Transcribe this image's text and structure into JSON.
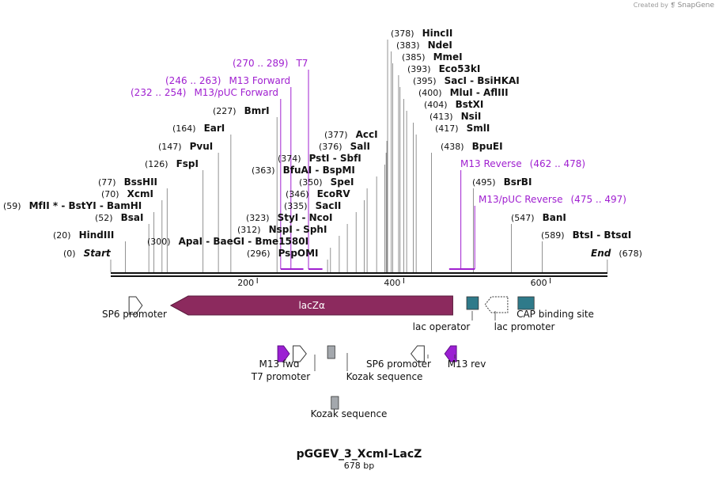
{
  "credit": {
    "prefix": "Created by",
    "brand": "SnapGene"
  },
  "plasmid": {
    "name": "pGGEV_3_XcmI-LacZ",
    "length_label": "678 bp"
  },
  "colors": {
    "enzyme": "#111111",
    "primer": "#a020d0",
    "lacz": "#8c2a5e",
    "teal": "#2f7a8a",
    "gray": "#a4a8ad",
    "purple": "#9b1fd3"
  },
  "ruler": {
    "ticks": [
      {
        "bp": 200,
        "label": "200"
      },
      {
        "bp": 400,
        "label": "400"
      },
      {
        "bp": 600,
        "label": "600"
      }
    ]
  },
  "sites": [
    {
      "name": "Start",
      "pos": "(0)",
      "bp": 0,
      "special": true
    },
    {
      "name": "End",
      "pos": "(678)",
      "bp": 678,
      "special": true
    },
    {
      "name": "HindIII",
      "pos": "(20)",
      "bp": 20
    },
    {
      "name": "BsaI",
      "pos": "(52)",
      "bp": 52
    },
    {
      "name": "MfII * - BstYI - BamHI",
      "pos": "(59)",
      "bp": 59
    },
    {
      "name": "XcmI",
      "pos": "(70)",
      "bp": 70
    },
    {
      "name": "BssHII",
      "pos": "(77)",
      "bp": 77
    },
    {
      "name": "FspI",
      "pos": "(126)",
      "bp": 126
    },
    {
      "name": "PvuI",
      "pos": "(147)",
      "bp": 147
    },
    {
      "name": "EarI",
      "pos": "(164)",
      "bp": 164
    },
    {
      "name": "BmrI",
      "pos": "(227)",
      "bp": 227
    },
    {
      "name": "ApaI - BaeGI - Bme1580I",
      "pos": "(300)",
      "bp": 300
    },
    {
      "name": "PspOMI",
      "pos": "(296)",
      "bp": 296
    },
    {
      "name": "NspI - SphI",
      "pos": "(312)",
      "bp": 312
    },
    {
      "name": "StyI - NcoI",
      "pos": "(323)",
      "bp": 323
    },
    {
      "name": "SacII",
      "pos": "(335)",
      "bp": 335
    },
    {
      "name": "EcoRV",
      "pos": "(346)",
      "bp": 346
    },
    {
      "name": "SpeI",
      "pos": "(350)",
      "bp": 350
    },
    {
      "name": "BfuAI - BspMI",
      "pos": "(363)",
      "bp": 363
    },
    {
      "name": "PstI - SbfI",
      "pos": "(374)",
      "bp": 374
    },
    {
      "name": "SalI",
      "pos": "(376)",
      "bp": 376
    },
    {
      "name": "AccI",
      "pos": "(377)",
      "bp": 377
    },
    {
      "name": "HincII",
      "pos": "(378)",
      "bp": 378
    },
    {
      "name": "NdeI",
      "pos": "(383)",
      "bp": 383
    },
    {
      "name": "MmeI",
      "pos": "(385)",
      "bp": 385
    },
    {
      "name": "Eco53kI",
      "pos": "(393)",
      "bp": 393
    },
    {
      "name": "SacI - BsiHKAI",
      "pos": "(395)",
      "bp": 395
    },
    {
      "name": "MluI - AflIII",
      "pos": "(400)",
      "bp": 400
    },
    {
      "name": "BstXI",
      "pos": "(404)",
      "bp": 404
    },
    {
      "name": "NsiI",
      "pos": "(413)",
      "bp": 413
    },
    {
      "name": "SmlI",
      "pos": "(417)",
      "bp": 417
    },
    {
      "name": "BpuEI",
      "pos": "(438)",
      "bp": 438
    },
    {
      "name": "BsrBI",
      "pos": "(495)",
      "bp": 495
    },
    {
      "name": "BanI",
      "pos": "(547)",
      "bp": 547
    },
    {
      "name": "BtsI - BtsαI",
      "pos": "(589)",
      "bp": 589
    }
  ],
  "primer_sites": [
    {
      "name": "T7",
      "pos": "(270 .. 289)",
      "start": 270,
      "end": 289
    },
    {
      "name": "M13 Forward",
      "pos": "(246 .. 263)",
      "start": 246,
      "end": 263
    },
    {
      "name": "M13/pUC Forward",
      "pos": "(232 .. 254)",
      "start": 232,
      "end": 254
    },
    {
      "name": "M13 Reverse",
      "pos": "(462 .. 478)",
      "start": 462,
      "end": 478
    },
    {
      "name": "M13/pUC Reverse",
      "pos": "(475 .. 497)",
      "start": 475,
      "end": 497
    }
  ],
  "features": [
    {
      "name": "lacZα",
      "kind": "cds",
      "start": 82,
      "end": 467,
      "dir": "left"
    },
    {
      "name": "SP6 promoter",
      "kind": "promoter",
      "start": 25,
      "end": 43,
      "dir": "right"
    },
    {
      "name": "lac operator",
      "kind": "box",
      "start": 486,
      "end": 502
    },
    {
      "name": "lac promoter",
      "kind": "promoter",
      "start": 511,
      "end": 542,
      "dir": "left"
    },
    {
      "name": "CAP binding site",
      "kind": "box",
      "start": 556,
      "end": 578
    },
    {
      "name": "M13 fwd",
      "kind": "primer",
      "start": 228,
      "end": 244,
      "dir": "right"
    },
    {
      "name": "T7 promoter",
      "kind": "promoter",
      "start": 249,
      "end": 267,
      "dir": "right"
    },
    {
      "name": "Kozak sequence",
      "kind": "box",
      "start": 296,
      "end": 306
    },
    {
      "name": "SP6 promoter",
      "kind": "promoter",
      "start": 410,
      "end": 428,
      "dir": "left"
    },
    {
      "name": "M13 rev",
      "kind": "primer",
      "start": 456,
      "end": 472,
      "dir": "left"
    },
    {
      "name": "Kozak sequence",
      "kind": "box",
      "start": 301,
      "end": 311
    }
  ]
}
